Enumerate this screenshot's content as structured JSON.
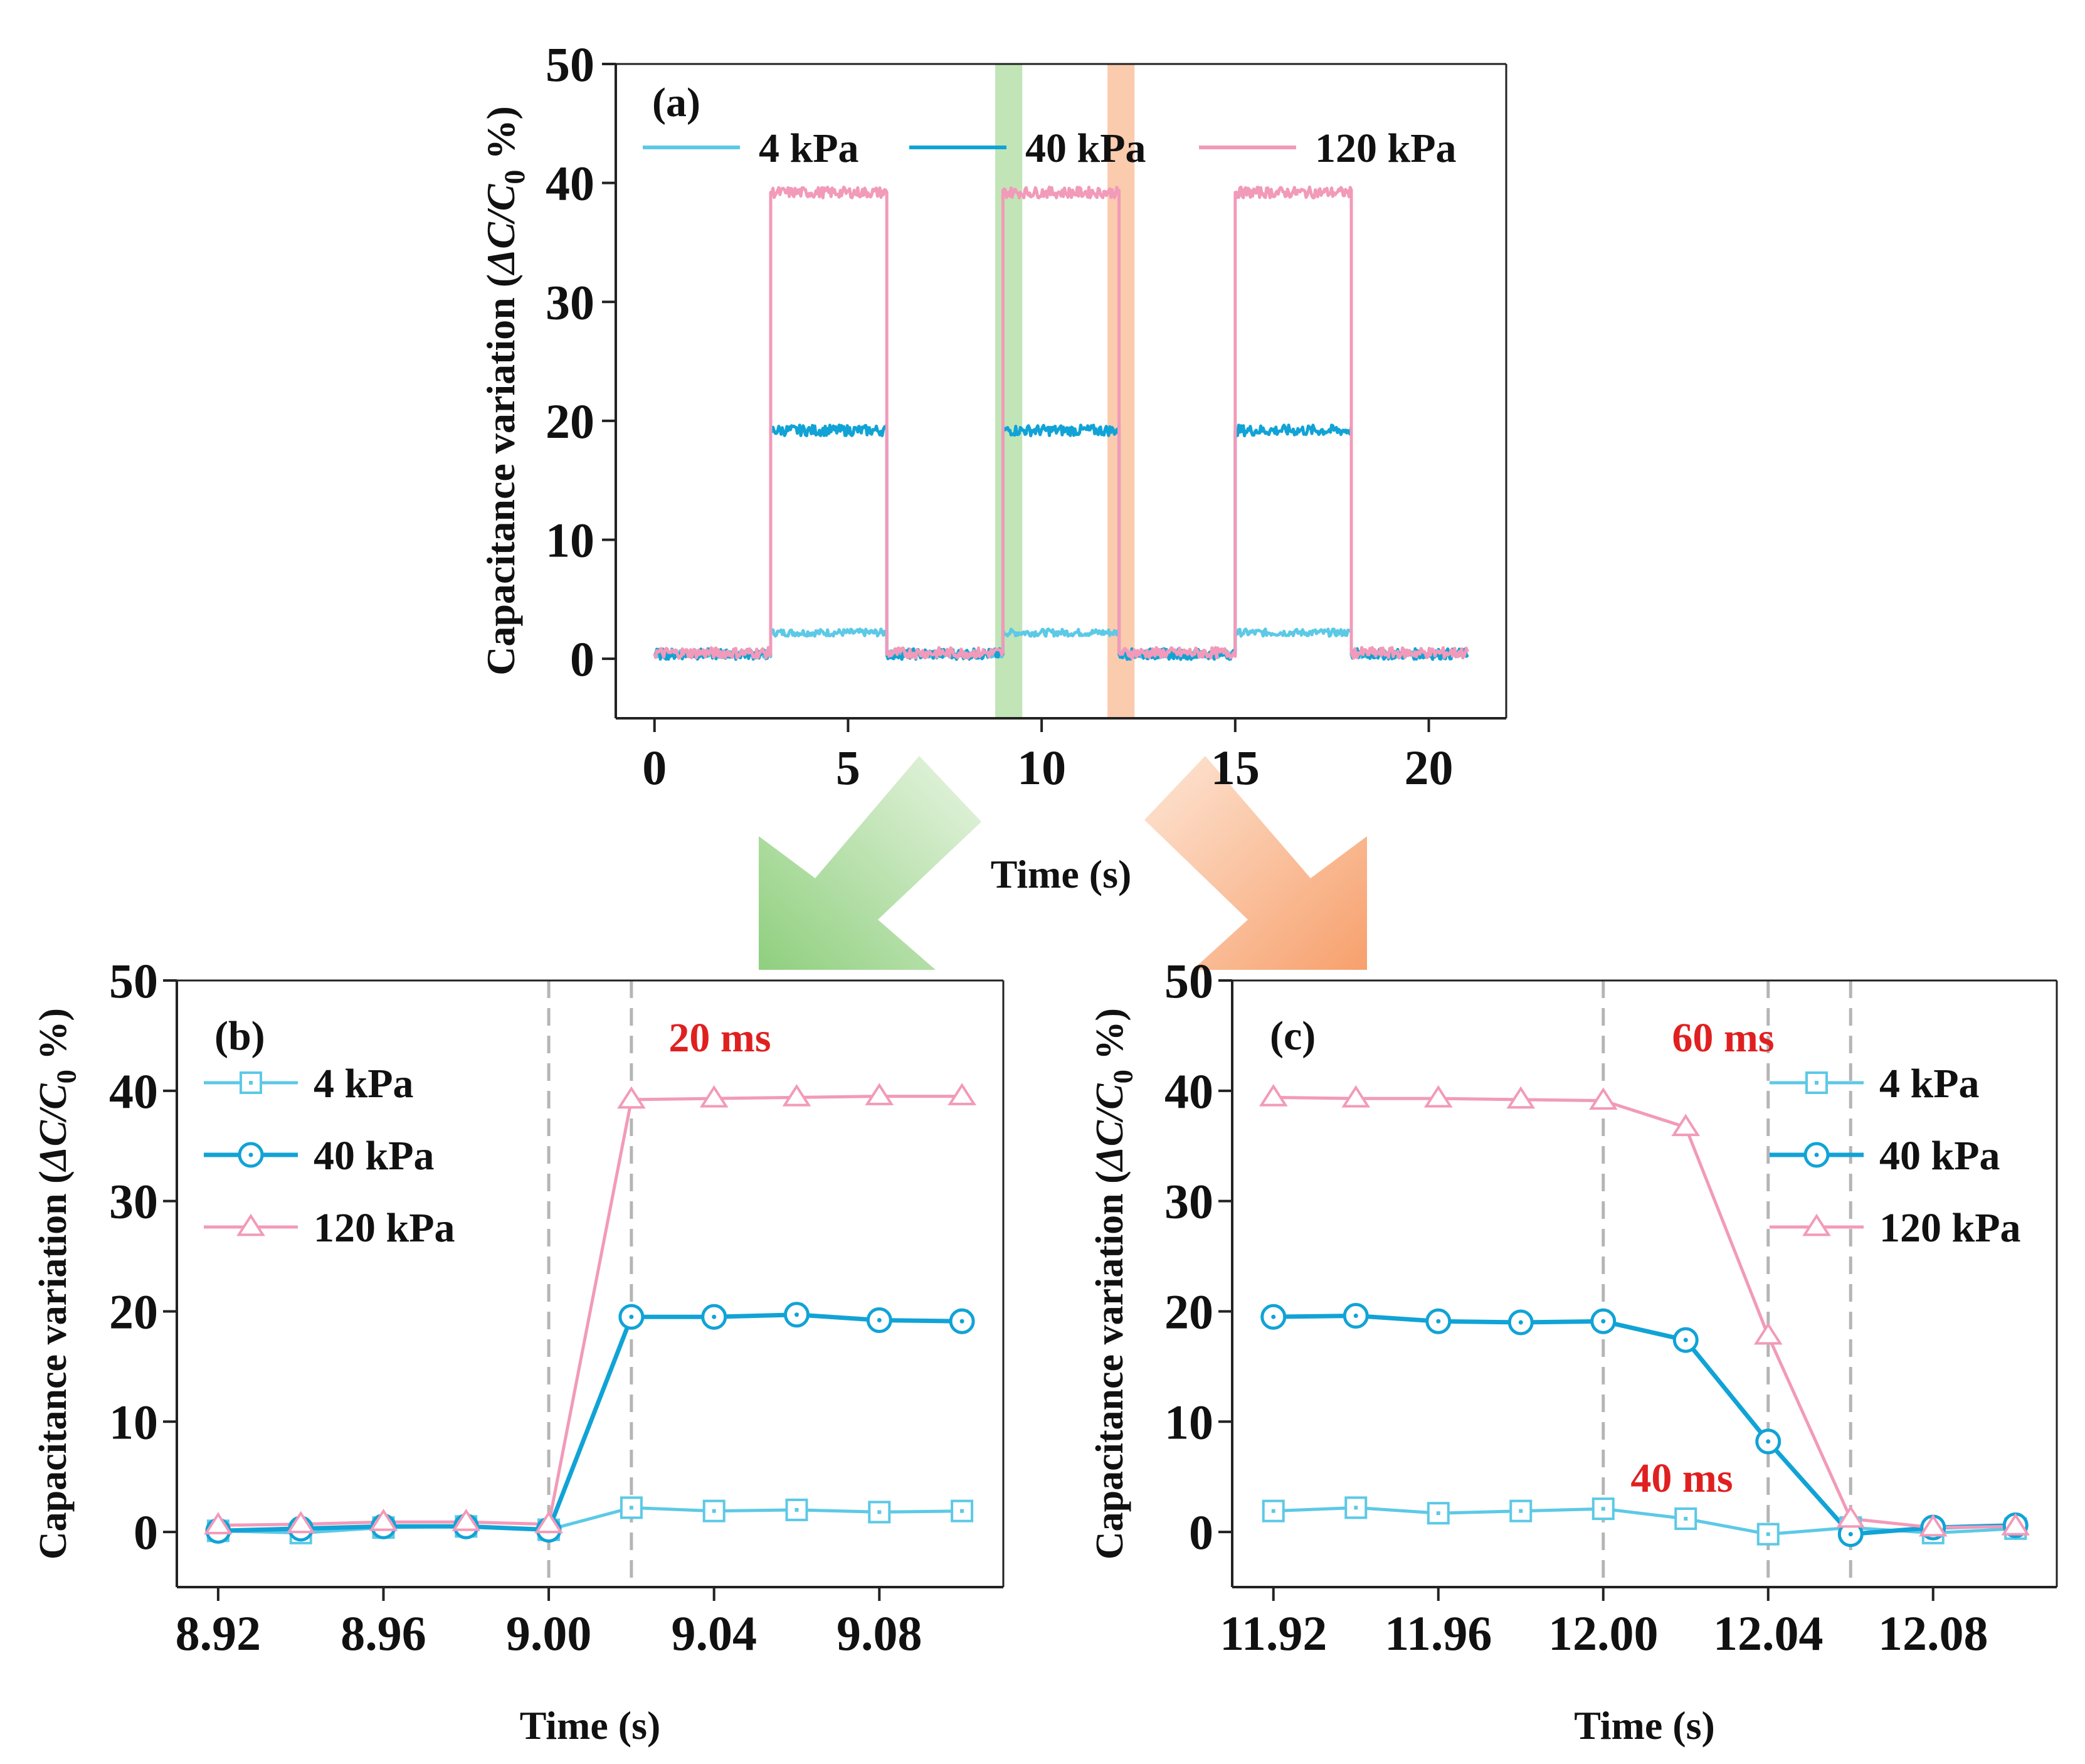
{
  "colors": {
    "series_4kPa": "#5cc9e6",
    "series_40kPa": "#11a3d6",
    "series_120kPa": "#f29ab9",
    "highlight_green": "#8fcf7e",
    "highlight_orange": "#f7a06c",
    "annotation_red": "#e02020",
    "guide_gray": "#b5b5b5"
  },
  "chart_data": [
    {
      "panel": "(a)",
      "type": "line",
      "xlabel": "Time (s)",
      "ylabel_prefix": "Capacitance variation (",
      "ylabel_math": "ΔC/C",
      "ylabel_sub": "0",
      "ylabel_suffix": " %)",
      "xlim": [
        -1,
        22
      ],
      "ylim": [
        -5,
        50
      ],
      "xticks": [
        0,
        5,
        10,
        15,
        20
      ],
      "yticks": [
        0,
        10,
        20,
        30,
        40,
        50
      ],
      "highlights": [
        {
          "name": "rise-window",
          "x_range": [
            8.8,
            9.5
          ],
          "color": "green"
        },
        {
          "name": "fall-window",
          "x_range": [
            11.7,
            12.4
          ],
          "color": "orange"
        }
      ],
      "series": [
        {
          "name": "4 kPa",
          "pressed_level": 2.2,
          "baseline": 0.4
        },
        {
          "name": "40 kPa",
          "pressed_level": 19.2,
          "baseline": 0.4
        },
        {
          "name": "120 kPa",
          "pressed_level": 39.2,
          "baseline": 0.5
        }
      ],
      "press_intervals": [
        [
          3,
          6
        ],
        [
          9,
          12
        ],
        [
          15,
          18
        ]
      ],
      "x_end": 21
    },
    {
      "panel": "(b)",
      "type": "line",
      "xlabel": "Time (s)",
      "ylabel_prefix": "Capacitance variation (",
      "ylabel_math": "ΔC/C",
      "ylabel_sub": "0",
      "ylabel_suffix": " %)",
      "xlim": [
        8.91,
        9.11
      ],
      "ylim": [
        -5,
        50
      ],
      "xticks": [
        "8.92",
        "8.96",
        "9.00",
        "9.04",
        "9.08"
      ],
      "yticks": [
        0,
        10,
        20,
        30,
        40,
        50
      ],
      "guides_x": [
        9.0,
        9.02
      ],
      "annotation": "20 ms",
      "x": [
        8.92,
        8.94,
        8.96,
        8.98,
        9.0,
        9.02,
        9.04,
        9.06,
        9.08,
        9.1
      ],
      "series": [
        {
          "name": "4 kPa",
          "marker": "square",
          "values": [
            0.1,
            -0.1,
            0.4,
            0.5,
            0.2,
            2.2,
            1.9,
            2.0,
            1.8,
            1.9
          ]
        },
        {
          "name": "40 kPa",
          "marker": "circle",
          "values": [
            0.1,
            0.3,
            0.5,
            0.5,
            0.2,
            19.5,
            19.5,
            19.7,
            19.2,
            19.1
          ]
        },
        {
          "name": "120 kPa",
          "marker": "triangle",
          "values": [
            0.6,
            0.7,
            0.9,
            0.9,
            0.7,
            39.2,
            39.3,
            39.4,
            39.5,
            39.5
          ]
        }
      ]
    },
    {
      "panel": "(c)",
      "type": "line",
      "xlabel": "Time (s)",
      "ylabel_prefix": "Capacitance variation (",
      "ylabel_math": "ΔC/C",
      "ylabel_sub": "0",
      "ylabel_suffix": " %)",
      "xlim": [
        11.91,
        12.11
      ],
      "ylim": [
        -5,
        50
      ],
      "xticks": [
        "11.92",
        "11.96",
        "12.00",
        "12.04",
        "12.08"
      ],
      "yticks": [
        0,
        10,
        20,
        30,
        40,
        50
      ],
      "guides_x": [
        12.0,
        12.04,
        12.06
      ],
      "annotations": [
        "60 ms",
        "40 ms"
      ],
      "x": [
        11.92,
        11.94,
        11.96,
        11.98,
        12.0,
        12.02,
        12.04,
        12.06,
        12.08,
        12.1
      ],
      "series": [
        {
          "name": "4 kPa",
          "marker": "square",
          "values": [
            1.9,
            2.2,
            1.7,
            1.9,
            2.1,
            1.2,
            -0.2,
            0.4,
            -0.1,
            0.3
          ]
        },
        {
          "name": "40 kPa",
          "marker": "circle",
          "values": [
            19.5,
            19.6,
            19.1,
            19.0,
            19.1,
            17.4,
            8.2,
            -0.2,
            0.4,
            0.6
          ]
        },
        {
          "name": "120 kPa",
          "marker": "triangle",
          "values": [
            39.4,
            39.3,
            39.3,
            39.2,
            39.1,
            36.7,
            17.8,
            1.2,
            0.4,
            0.5
          ]
        }
      ]
    }
  ]
}
